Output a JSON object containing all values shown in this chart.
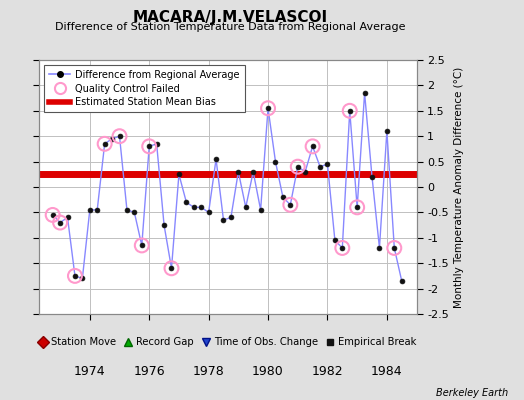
{
  "title": "MACARA/J.M.VELASCOI",
  "subtitle": "Difference of Station Temperature Data from Regional Average",
  "ylabel": "Monthly Temperature Anomaly Difference (°C)",
  "credit": "Berkeley Earth",
  "bias_value": 0.25,
  "ylim": [
    -2.5,
    2.5
  ],
  "xlim": [
    1972.3,
    1985.0
  ],
  "bg_color": "#e0e0e0",
  "plot_bg_color": "#ffffff",
  "grid_color": "#c0c0c0",
  "line_color": "#8888ff",
  "line_width": 1.0,
  "marker_color": "#111111",
  "marker_size": 3.5,
  "bias_color": "#dd0000",
  "bias_linewidth": 5.0,
  "qc_color": "#ff99cc",
  "time_x": [
    1972.75,
    1973.0,
    1973.25,
    1973.5,
    1973.75,
    1974.0,
    1974.25,
    1974.5,
    1974.75,
    1975.0,
    1975.25,
    1975.5,
    1975.75,
    1976.0,
    1976.25,
    1976.5,
    1976.75,
    1977.0,
    1977.25,
    1977.5,
    1977.75,
    1978.0,
    1978.25,
    1978.5,
    1978.75,
    1979.0,
    1979.25,
    1979.5,
    1979.75,
    1980.0,
    1980.25,
    1980.5,
    1980.75,
    1981.0,
    1981.25,
    1981.5,
    1981.75,
    1982.0,
    1982.25,
    1982.5,
    1982.75,
    1983.0,
    1983.25,
    1983.5,
    1983.75,
    1984.0,
    1984.25,
    1984.5
  ],
  "values": [
    -0.55,
    -0.7,
    -0.6,
    -1.75,
    -1.8,
    -0.45,
    -0.45,
    0.85,
    0.95,
    1.0,
    -0.45,
    -0.5,
    -1.15,
    0.8,
    0.85,
    -0.75,
    -1.6,
    0.25,
    -0.3,
    -0.4,
    -0.4,
    -0.5,
    0.55,
    -0.65,
    -0.6,
    0.3,
    -0.4,
    0.3,
    -0.45,
    1.55,
    0.5,
    -0.2,
    -0.35,
    0.4,
    0.3,
    0.8,
    0.4,
    0.45,
    -1.05,
    -1.2,
    1.5,
    -0.4,
    1.85,
    0.2,
    -1.2,
    1.1,
    -1.2,
    -1.85
  ],
  "qc_failed_x": [
    1972.75,
    1973.0,
    1973.5,
    1974.5,
    1975.0,
    1975.75,
    1976.0,
    1976.75,
    1980.0,
    1980.75,
    1981.0,
    1981.5,
    1982.5,
    1982.75,
    1983.0,
    1984.25
  ],
  "qc_failed_y": [
    -0.55,
    -0.7,
    -1.75,
    0.85,
    1.0,
    -1.15,
    0.8,
    -1.6,
    1.55,
    -0.35,
    0.4,
    0.8,
    -1.2,
    1.5,
    -0.4,
    -1.2
  ],
  "xticks": [
    1974,
    1976,
    1978,
    1980,
    1982,
    1984
  ],
  "yticks": [
    -2.5,
    -2.0,
    -1.5,
    -1.0,
    -0.5,
    0.0,
    0.5,
    1.0,
    1.5,
    2.0,
    2.5
  ],
  "ytick_labels": [
    "-2.5",
    "-2",
    "-1.5",
    "-1",
    "-0.5",
    "0",
    "0.5",
    "1",
    "1.5",
    "2",
    "2.5"
  ]
}
